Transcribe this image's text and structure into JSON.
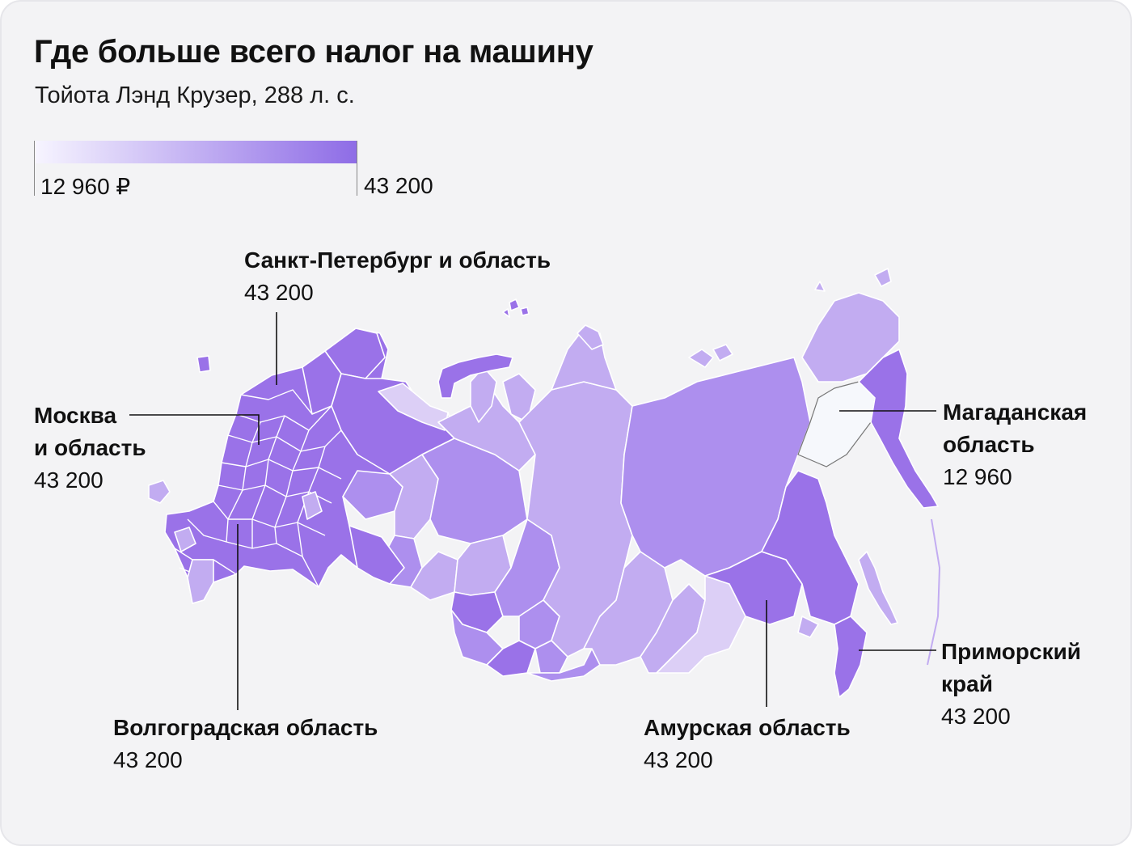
{
  "title": "Где больше всего налог на машину",
  "subtitle": "Тойота Лэнд Крузер, 288 л. с.",
  "legend": {
    "min_label": "12 960 ₽",
    "max_label": "43 200",
    "min_value": 12960,
    "max_value": 43200,
    "color_min": "#f7f5ff",
    "color_max": "#8e6ce6"
  },
  "colors": {
    "background": "#f3f3f5",
    "region_max": "#9a72e8",
    "region_high": "#ad8fee",
    "region_mid": "#c2acf1",
    "region_low": "#dccff6",
    "region_min": "#f6f8fc",
    "border": "#ffffff"
  },
  "callouts": [
    {
      "name": "Санкт-Петербург и область",
      "value": "43 200"
    },
    {
      "name": "Москва\nи область",
      "name_line1": "Москва",
      "name_line2": "и область",
      "value": "43 200"
    },
    {
      "name": "Волгоградская область",
      "value": "43 200"
    },
    {
      "name": "Амурская область",
      "value": "43 200"
    },
    {
      "name_line1": "Магаданская",
      "name_line2": "область",
      "value": "12 960"
    },
    {
      "name_line1": "Приморский",
      "name_line2": "край",
      "value": "43 200"
    }
  ]
}
